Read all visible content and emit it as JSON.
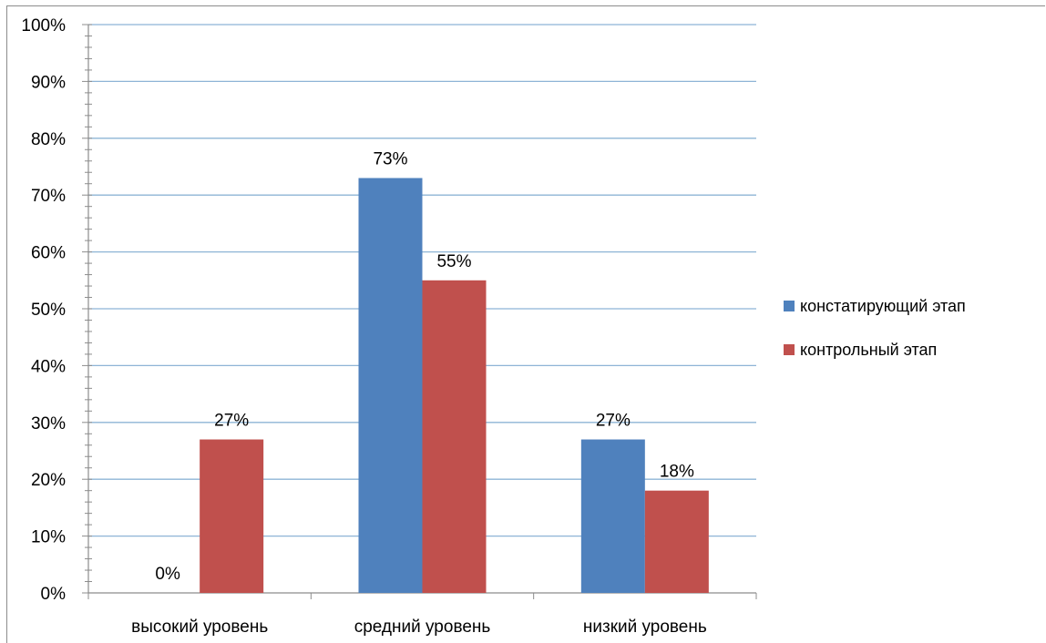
{
  "chart_data": {
    "type": "bar",
    "categories": [
      "высокий уровень",
      "средний уровень",
      "низкий уровень"
    ],
    "series": [
      {
        "name": "констатирующий этап",
        "values": [
          0,
          73,
          27
        ],
        "labels": [
          "0%",
          "73%",
          "27%"
        ],
        "color": "#4f81bd"
      },
      {
        "name": "контрольный этап",
        "values": [
          27,
          55,
          18
        ],
        "labels": [
          "27%",
          "55%",
          "18%"
        ],
        "color": "#c0504d"
      }
    ],
    "ylim": [
      0,
      100
    ],
    "yticks": [
      "0%",
      "10%",
      "20%",
      "30%",
      "40%",
      "50%",
      "60%",
      "70%",
      "80%",
      "90%",
      "100%"
    ],
    "grid": true,
    "gridline_color": "#8eb4d6",
    "legend_position": "right"
  }
}
